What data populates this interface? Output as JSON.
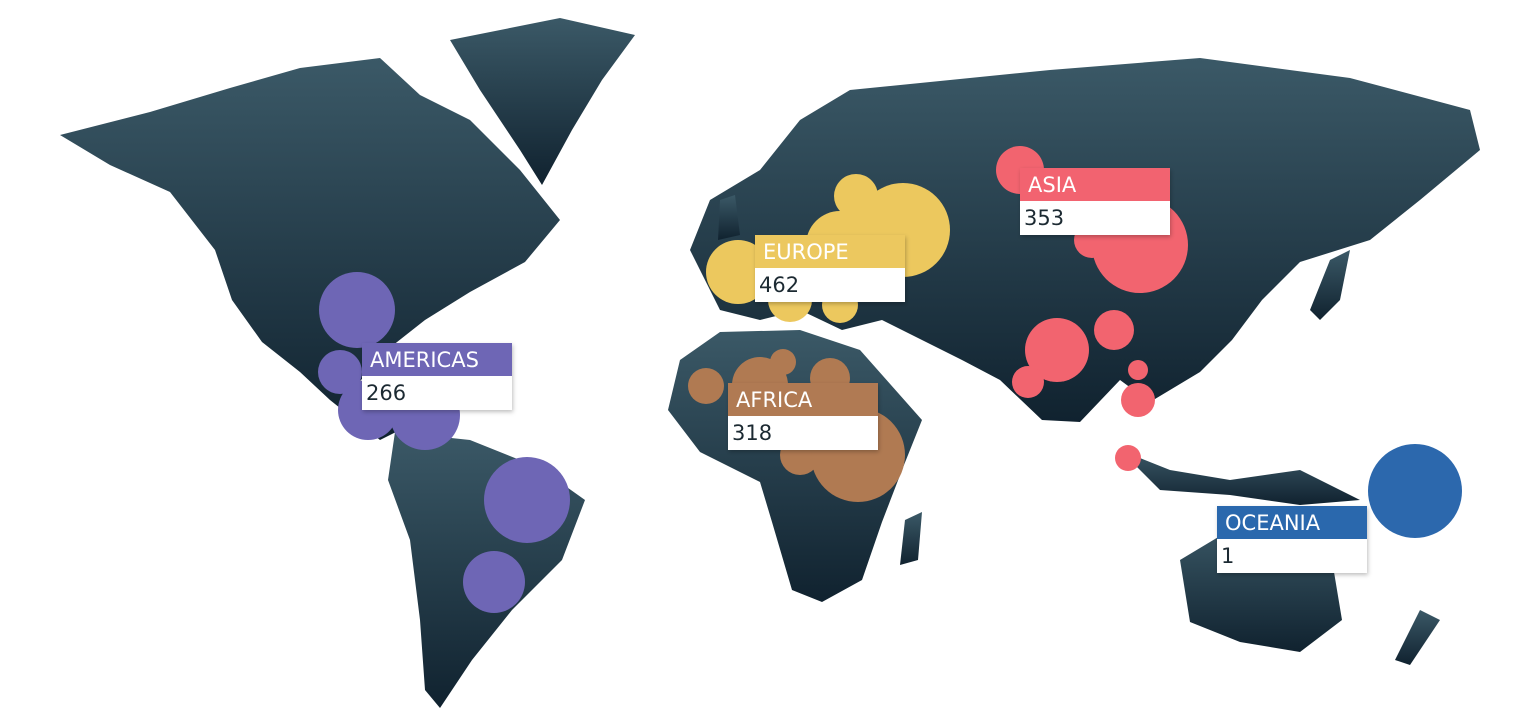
{
  "regions": [
    {
      "name": "ASIA",
      "value": 353,
      "color": "#f2646f"
    },
    {
      "name": "EUROPE",
      "value": 462,
      "color": "#ecc85e"
    },
    {
      "name": "AMERICAS",
      "value": 266,
      "color": "#6e66b5"
    },
    {
      "name": "AFRICA",
      "value": 318,
      "color": "#b07a52"
    },
    {
      "name": "OCEANIA",
      "value": 1,
      "color": "#2c68ad"
    }
  ]
}
